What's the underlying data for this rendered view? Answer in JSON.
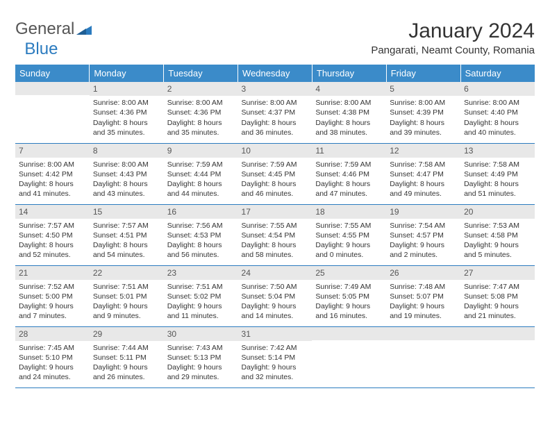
{
  "logo": {
    "text1": "General",
    "text2": "Blue"
  },
  "title": "January 2024",
  "location": "Pangarati, Neamt County, Romania",
  "colors": {
    "header_bg": "#3b8bc9",
    "header_text": "#ffffff",
    "daynum_bg": "#e8e8e8",
    "row_divider": "#2b7bbf",
    "text": "#333333"
  },
  "day_headers": [
    "Sunday",
    "Monday",
    "Tuesday",
    "Wednesday",
    "Thursday",
    "Friday",
    "Saturday"
  ],
  "weeks": [
    [
      {
        "n": "",
        "sr": "",
        "ss": "",
        "dl1": "",
        "dl2": ""
      },
      {
        "n": "1",
        "sr": "Sunrise: 8:00 AM",
        "ss": "Sunset: 4:36 PM",
        "dl1": "Daylight: 8 hours",
        "dl2": "and 35 minutes."
      },
      {
        "n": "2",
        "sr": "Sunrise: 8:00 AM",
        "ss": "Sunset: 4:36 PM",
        "dl1": "Daylight: 8 hours",
        "dl2": "and 35 minutes."
      },
      {
        "n": "3",
        "sr": "Sunrise: 8:00 AM",
        "ss": "Sunset: 4:37 PM",
        "dl1": "Daylight: 8 hours",
        "dl2": "and 36 minutes."
      },
      {
        "n": "4",
        "sr": "Sunrise: 8:00 AM",
        "ss": "Sunset: 4:38 PM",
        "dl1": "Daylight: 8 hours",
        "dl2": "and 38 minutes."
      },
      {
        "n": "5",
        "sr": "Sunrise: 8:00 AM",
        "ss": "Sunset: 4:39 PM",
        "dl1": "Daylight: 8 hours",
        "dl2": "and 39 minutes."
      },
      {
        "n": "6",
        "sr": "Sunrise: 8:00 AM",
        "ss": "Sunset: 4:40 PM",
        "dl1": "Daylight: 8 hours",
        "dl2": "and 40 minutes."
      }
    ],
    [
      {
        "n": "7",
        "sr": "Sunrise: 8:00 AM",
        "ss": "Sunset: 4:42 PM",
        "dl1": "Daylight: 8 hours",
        "dl2": "and 41 minutes."
      },
      {
        "n": "8",
        "sr": "Sunrise: 8:00 AM",
        "ss": "Sunset: 4:43 PM",
        "dl1": "Daylight: 8 hours",
        "dl2": "and 43 minutes."
      },
      {
        "n": "9",
        "sr": "Sunrise: 7:59 AM",
        "ss": "Sunset: 4:44 PM",
        "dl1": "Daylight: 8 hours",
        "dl2": "and 44 minutes."
      },
      {
        "n": "10",
        "sr": "Sunrise: 7:59 AM",
        "ss": "Sunset: 4:45 PM",
        "dl1": "Daylight: 8 hours",
        "dl2": "and 46 minutes."
      },
      {
        "n": "11",
        "sr": "Sunrise: 7:59 AM",
        "ss": "Sunset: 4:46 PM",
        "dl1": "Daylight: 8 hours",
        "dl2": "and 47 minutes."
      },
      {
        "n": "12",
        "sr": "Sunrise: 7:58 AM",
        "ss": "Sunset: 4:47 PM",
        "dl1": "Daylight: 8 hours",
        "dl2": "and 49 minutes."
      },
      {
        "n": "13",
        "sr": "Sunrise: 7:58 AM",
        "ss": "Sunset: 4:49 PM",
        "dl1": "Daylight: 8 hours",
        "dl2": "and 51 minutes."
      }
    ],
    [
      {
        "n": "14",
        "sr": "Sunrise: 7:57 AM",
        "ss": "Sunset: 4:50 PM",
        "dl1": "Daylight: 8 hours",
        "dl2": "and 52 minutes."
      },
      {
        "n": "15",
        "sr": "Sunrise: 7:57 AM",
        "ss": "Sunset: 4:51 PM",
        "dl1": "Daylight: 8 hours",
        "dl2": "and 54 minutes."
      },
      {
        "n": "16",
        "sr": "Sunrise: 7:56 AM",
        "ss": "Sunset: 4:53 PM",
        "dl1": "Daylight: 8 hours",
        "dl2": "and 56 minutes."
      },
      {
        "n": "17",
        "sr": "Sunrise: 7:55 AM",
        "ss": "Sunset: 4:54 PM",
        "dl1": "Daylight: 8 hours",
        "dl2": "and 58 minutes."
      },
      {
        "n": "18",
        "sr": "Sunrise: 7:55 AM",
        "ss": "Sunset: 4:55 PM",
        "dl1": "Daylight: 9 hours",
        "dl2": "and 0 minutes."
      },
      {
        "n": "19",
        "sr": "Sunrise: 7:54 AM",
        "ss": "Sunset: 4:57 PM",
        "dl1": "Daylight: 9 hours",
        "dl2": "and 2 minutes."
      },
      {
        "n": "20",
        "sr": "Sunrise: 7:53 AM",
        "ss": "Sunset: 4:58 PM",
        "dl1": "Daylight: 9 hours",
        "dl2": "and 5 minutes."
      }
    ],
    [
      {
        "n": "21",
        "sr": "Sunrise: 7:52 AM",
        "ss": "Sunset: 5:00 PM",
        "dl1": "Daylight: 9 hours",
        "dl2": "and 7 minutes."
      },
      {
        "n": "22",
        "sr": "Sunrise: 7:51 AM",
        "ss": "Sunset: 5:01 PM",
        "dl1": "Daylight: 9 hours",
        "dl2": "and 9 minutes."
      },
      {
        "n": "23",
        "sr": "Sunrise: 7:51 AM",
        "ss": "Sunset: 5:02 PM",
        "dl1": "Daylight: 9 hours",
        "dl2": "and 11 minutes."
      },
      {
        "n": "24",
        "sr": "Sunrise: 7:50 AM",
        "ss": "Sunset: 5:04 PM",
        "dl1": "Daylight: 9 hours",
        "dl2": "and 14 minutes."
      },
      {
        "n": "25",
        "sr": "Sunrise: 7:49 AM",
        "ss": "Sunset: 5:05 PM",
        "dl1": "Daylight: 9 hours",
        "dl2": "and 16 minutes."
      },
      {
        "n": "26",
        "sr": "Sunrise: 7:48 AM",
        "ss": "Sunset: 5:07 PM",
        "dl1": "Daylight: 9 hours",
        "dl2": "and 19 minutes."
      },
      {
        "n": "27",
        "sr": "Sunrise: 7:47 AM",
        "ss": "Sunset: 5:08 PM",
        "dl1": "Daylight: 9 hours",
        "dl2": "and 21 minutes."
      }
    ],
    [
      {
        "n": "28",
        "sr": "Sunrise: 7:45 AM",
        "ss": "Sunset: 5:10 PM",
        "dl1": "Daylight: 9 hours",
        "dl2": "and 24 minutes."
      },
      {
        "n": "29",
        "sr": "Sunrise: 7:44 AM",
        "ss": "Sunset: 5:11 PM",
        "dl1": "Daylight: 9 hours",
        "dl2": "and 26 minutes."
      },
      {
        "n": "30",
        "sr": "Sunrise: 7:43 AM",
        "ss": "Sunset: 5:13 PM",
        "dl1": "Daylight: 9 hours",
        "dl2": "and 29 minutes."
      },
      {
        "n": "31",
        "sr": "Sunrise: 7:42 AM",
        "ss": "Sunset: 5:14 PM",
        "dl1": "Daylight: 9 hours",
        "dl2": "and 32 minutes."
      },
      {
        "n": "",
        "sr": "",
        "ss": "",
        "dl1": "",
        "dl2": ""
      },
      {
        "n": "",
        "sr": "",
        "ss": "",
        "dl1": "",
        "dl2": ""
      },
      {
        "n": "",
        "sr": "",
        "ss": "",
        "dl1": "",
        "dl2": ""
      }
    ]
  ]
}
